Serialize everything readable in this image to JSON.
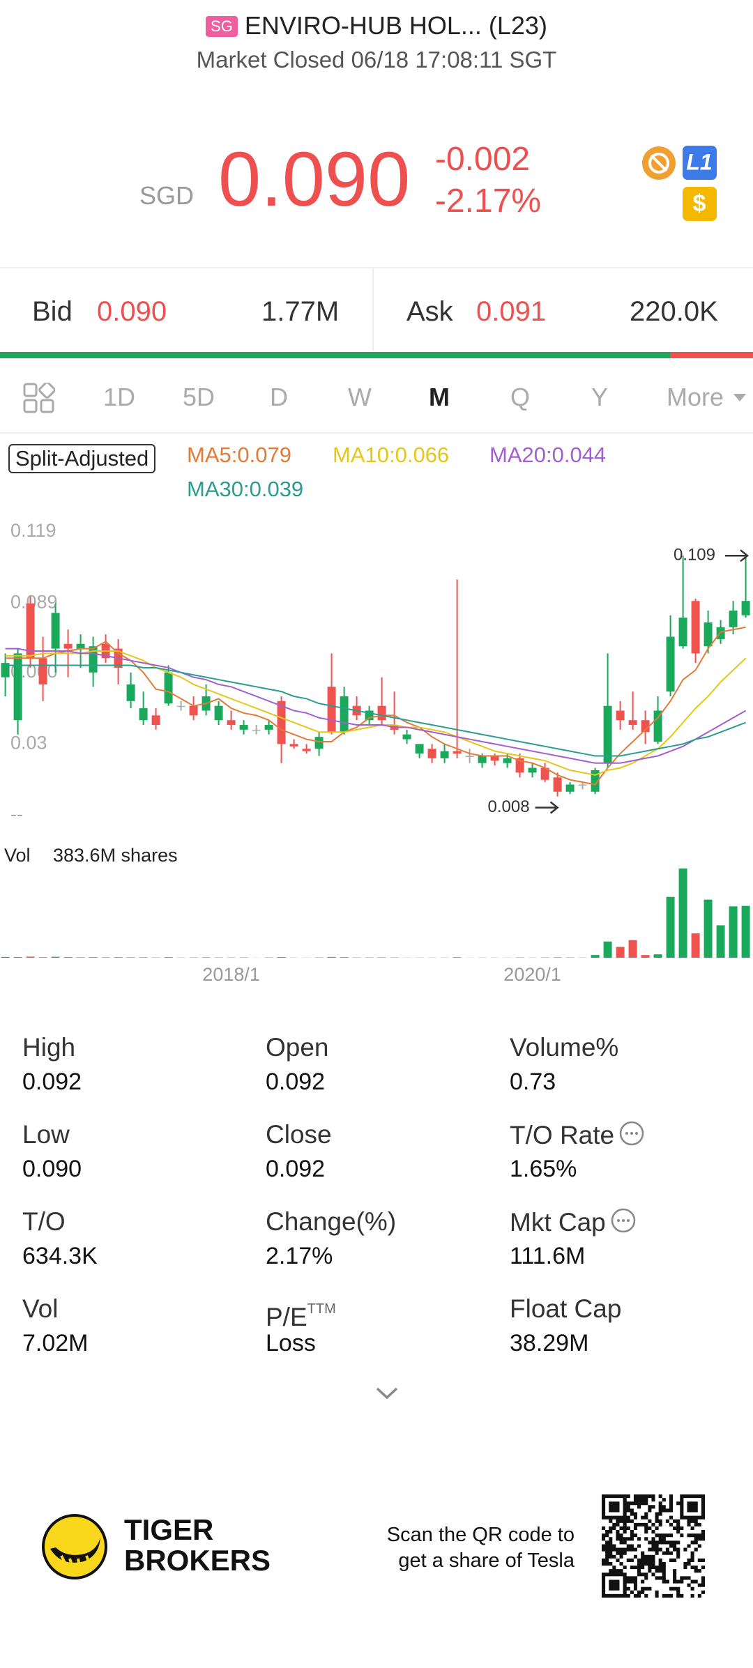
{
  "header": {
    "exchange": "SG",
    "title": "ENVIRO-HUB HOL... (L23)",
    "status": "Market Closed 06/18 17:08:11 SGT",
    "currency": "SGD",
    "price": "0.090",
    "change": "-0.002",
    "change_pct": "-2.17%",
    "badges": [
      "L1",
      "$"
    ]
  },
  "quote": {
    "bid_label": "Bid",
    "bid": "0.090",
    "bid_size": {
      "value": 1770000,
      "label": "1.77M"
    },
    "ask_label": "Ask",
    "ask": "0.091",
    "ask_size": {
      "value": 220000,
      "label": "220.0K"
    }
  },
  "tabs": [
    {
      "label": "1D"
    },
    {
      "label": "5D"
    },
    {
      "label": "D"
    },
    {
      "label": "W"
    },
    {
      "label": "M",
      "active": true
    },
    {
      "label": "Q"
    },
    {
      "label": "Y"
    },
    {
      "label": "More"
    }
  ],
  "chart_data": {
    "type": "candlestick",
    "adjust_label": "Split-Adjusted",
    "categories": [
      null,
      null,
      null,
      null,
      null,
      null,
      null,
      null,
      null,
      null,
      null,
      null,
      null,
      null,
      null,
      null,
      null,
      null,
      "2018/1",
      null,
      null,
      null,
      null,
      null,
      null,
      null,
      null,
      null,
      null,
      null,
      null,
      null,
      null,
      null,
      null,
      null,
      null,
      null,
      null,
      null,
      null,
      null,
      "2020/1",
      null,
      null,
      null,
      null,
      null,
      null,
      null,
      null,
      null,
      null,
      null,
      null,
      null,
      null,
      null,
      null,
      null
    ],
    "open": [
      0.058,
      0.04,
      0.089,
      0.066,
      0.07,
      0.072,
      0.07,
      0.06,
      0.072,
      0.07,
      0.048,
      0.04,
      0.042,
      0.047,
      0.046,
      0.046,
      0.044,
      0.04,
      0.04,
      0.036,
      0.036,
      0.036,
      0.048,
      0.03,
      0.028,
      0.028,
      0.054,
      0.035,
      0.046,
      0.04,
      0.046,
      0.038,
      0.032,
      0.026,
      0.028,
      0.024,
      0.027,
      0.025,
      0.022,
      0.025,
      0.022,
      0.024,
      0.018,
      0.02,
      0.016,
      0.01,
      0.013,
      0.01,
      0.022,
      0.044,
      0.04,
      0.04,
      0.031,
      0.052,
      0.071,
      0.09,
      0.071,
      0.074,
      0.079,
      0.084
    ],
    "high": [
      0.068,
      0.07,
      0.092,
      0.075,
      0.089,
      0.078,
      0.076,
      0.075,
      0.076,
      0.074,
      0.06,
      0.052,
      0.045,
      0.063,
      0.048,
      0.05,
      0.055,
      0.048,
      0.044,
      0.04,
      0.038,
      0.04,
      0.05,
      0.032,
      0.03,
      0.035,
      0.068,
      0.054,
      0.05,
      0.046,
      0.058,
      0.052,
      0.036,
      0.03,
      0.03,
      0.03,
      0.099,
      0.028,
      0.026,
      0.026,
      0.026,
      0.026,
      0.022,
      0.022,
      0.018,
      0.014,
      0.014,
      0.02,
      0.068,
      0.048,
      0.052,
      0.044,
      0.05,
      0.084,
      0.109,
      0.091,
      0.086,
      0.082,
      0.09,
      0.108
    ],
    "low": [
      0.05,
      0.034,
      0.062,
      0.048,
      0.06,
      0.058,
      0.062,
      0.054,
      0.064,
      0.055,
      0.045,
      0.038,
      0.036,
      0.046,
      0.044,
      0.04,
      0.042,
      0.038,
      0.036,
      0.034,
      0.034,
      0.034,
      0.022,
      0.028,
      0.026,
      0.025,
      0.034,
      0.034,
      0.04,
      0.038,
      0.038,
      0.034,
      0.03,
      0.024,
      0.022,
      0.022,
      0.024,
      0.022,
      0.02,
      0.021,
      0.02,
      0.016,
      0.016,
      0.014,
      0.008,
      0.009,
      0.011,
      0.009,
      0.02,
      0.036,
      0.036,
      0.03,
      0.03,
      0.05,
      0.07,
      0.064,
      0.068,
      0.072,
      0.076,
      0.083
    ],
    "close": [
      0.064,
      0.068,
      0.066,
      0.055,
      0.085,
      0.07,
      0.072,
      0.071,
      0.066,
      0.062,
      0.055,
      0.045,
      0.038,
      0.06,
      0.046,
      0.042,
      0.05,
      0.046,
      0.038,
      0.038,
      0.036,
      0.038,
      0.03,
      0.029,
      0.027,
      0.033,
      0.035,
      0.05,
      0.042,
      0.044,
      0.04,
      0.036,
      0.034,
      0.03,
      0.024,
      0.027,
      0.026,
      0.025,
      0.025,
      0.023,
      0.024,
      0.018,
      0.02,
      0.015,
      0.01,
      0.013,
      0.013,
      0.019,
      0.046,
      0.04,
      0.038,
      0.035,
      0.044,
      0.075,
      0.083,
      0.068,
      0.081,
      0.079,
      0.086,
      0.09
    ],
    "volume": [
      6,
      5,
      8,
      4,
      7,
      5,
      3,
      4,
      3,
      4,
      3,
      3,
      2,
      4,
      2,
      2,
      3,
      2,
      2,
      2,
      1,
      2,
      5,
      1,
      1,
      2,
      6,
      4,
      2,
      2,
      3,
      2,
      1,
      1,
      1,
      1,
      4,
      1,
      1,
      1,
      1,
      2,
      1,
      2,
      3,
      2,
      2,
      20,
      120,
      80,
      130,
      20,
      25,
      450,
      660,
      180,
      430,
      240,
      380,
      383.6
    ],
    "volume_title": "Vol",
    "volume_text": "383.6M shares",
    "series": [
      {
        "name": "MA5:0.079",
        "color": "#e07b39",
        "values": [
          0.066,
          0.066,
          0.066,
          0.066,
          0.068,
          0.069,
          0.07,
          0.07,
          0.073,
          0.068,
          0.065,
          0.06,
          0.053,
          0.052,
          0.049,
          0.046,
          0.047,
          0.049,
          0.045,
          0.043,
          0.042,
          0.04,
          0.036,
          0.034,
          0.032,
          0.031,
          0.031,
          0.035,
          0.037,
          0.041,
          0.042,
          0.042,
          0.039,
          0.037,
          0.033,
          0.03,
          0.028,
          0.026,
          0.025,
          0.025,
          0.025,
          0.023,
          0.022,
          0.02,
          0.017,
          0.015,
          0.014,
          0.013,
          0.02,
          0.026,
          0.031,
          0.036,
          0.041,
          0.048,
          0.057,
          0.061,
          0.07,
          0.077,
          0.078,
          0.079
        ]
      },
      {
        "name": "MA10:0.066",
        "color": "#e6c619",
        "values": [
          0.067,
          0.067,
          0.067,
          0.068,
          0.068,
          0.068,
          0.068,
          0.069,
          0.069,
          0.069,
          0.067,
          0.065,
          0.062,
          0.06,
          0.058,
          0.055,
          0.053,
          0.051,
          0.049,
          0.047,
          0.045,
          0.043,
          0.041,
          0.039,
          0.037,
          0.035,
          0.035,
          0.035,
          0.036,
          0.037,
          0.038,
          0.038,
          0.037,
          0.037,
          0.036,
          0.035,
          0.033,
          0.031,
          0.029,
          0.027,
          0.026,
          0.025,
          0.024,
          0.023,
          0.021,
          0.019,
          0.018,
          0.017,
          0.019,
          0.02,
          0.022,
          0.025,
          0.028,
          0.033,
          0.039,
          0.045,
          0.05,
          0.056,
          0.061,
          0.066
        ]
      },
      {
        "name": "MA20:0.044",
        "color": "#a25fd0",
        "values": [
          0.07,
          0.07,
          0.069,
          0.069,
          0.069,
          0.069,
          0.068,
          0.068,
          0.067,
          0.066,
          0.065,
          0.064,
          0.063,
          0.062,
          0.06,
          0.058,
          0.057,
          0.055,
          0.054,
          0.052,
          0.05,
          0.048,
          0.046,
          0.044,
          0.043,
          0.041,
          0.04,
          0.039,
          0.038,
          0.038,
          0.038,
          0.037,
          0.037,
          0.036,
          0.035,
          0.034,
          0.033,
          0.032,
          0.031,
          0.03,
          0.029,
          0.028,
          0.027,
          0.026,
          0.025,
          0.024,
          0.023,
          0.022,
          0.022,
          0.022,
          0.023,
          0.024,
          0.025,
          0.027,
          0.029,
          0.032,
          0.035,
          0.038,
          0.041,
          0.044
        ]
      },
      {
        "name": "MA30:0.039",
        "color": "#2a9d8f",
        "values": [
          0.063,
          0.063,
          0.063,
          0.063,
          0.063,
          0.063,
          0.063,
          0.063,
          0.063,
          0.063,
          0.063,
          0.062,
          0.062,
          0.061,
          0.06,
          0.059,
          0.058,
          0.057,
          0.056,
          0.055,
          0.054,
          0.053,
          0.052,
          0.05,
          0.049,
          0.047,
          0.046,
          0.045,
          0.044,
          0.043,
          0.042,
          0.041,
          0.04,
          0.039,
          0.038,
          0.037,
          0.036,
          0.035,
          0.034,
          0.033,
          0.032,
          0.031,
          0.03,
          0.029,
          0.028,
          0.027,
          0.026,
          0.025,
          0.025,
          0.025,
          0.026,
          0.027,
          0.028,
          0.029,
          0.03,
          0.032,
          0.033,
          0.035,
          0.037,
          0.039
        ]
      }
    ],
    "max_label": "0.109",
    "min_label": "0.008",
    "ylim": [
      0,
      0.119
    ],
    "yticks": [
      {
        "value": 0,
        "label": "--"
      },
      0.03,
      {
        "value": 0.06,
        "label": "0.060"
      },
      0.089,
      0.119
    ],
    "grid": false,
    "up_color": "#1aa95b",
    "down_color": "#ef5350",
    "flat_color": "#aaaaaa"
  },
  "stats": [
    {
      "label": "High",
      "value": "0.092"
    },
    {
      "label": "Open",
      "value": "0.092"
    },
    {
      "label": "Volume%",
      "value": "0.73"
    },
    {
      "label": "Low",
      "value": "0.090"
    },
    {
      "label": "Close",
      "value": "0.092"
    },
    {
      "label": "T/O Rate",
      "value": "1.65%",
      "info": true
    },
    {
      "label": "T/O",
      "value": "634.3K"
    },
    {
      "label": "Change(%)",
      "value": "2.17%"
    },
    {
      "label": "Mkt Cap",
      "value": "111.6M",
      "info": true
    },
    {
      "label": "Vol",
      "value": "7.02M"
    },
    {
      "label": "P/E",
      "sup": "TTM",
      "value": "Loss"
    },
    {
      "label": "Float Cap",
      "value": "38.29M"
    }
  ],
  "footer": {
    "brand_line1": "TIGER",
    "brand_line2": "BROKERS",
    "promo_line1": "Scan the QR code to",
    "promo_line2": "get a share of Tesla"
  }
}
